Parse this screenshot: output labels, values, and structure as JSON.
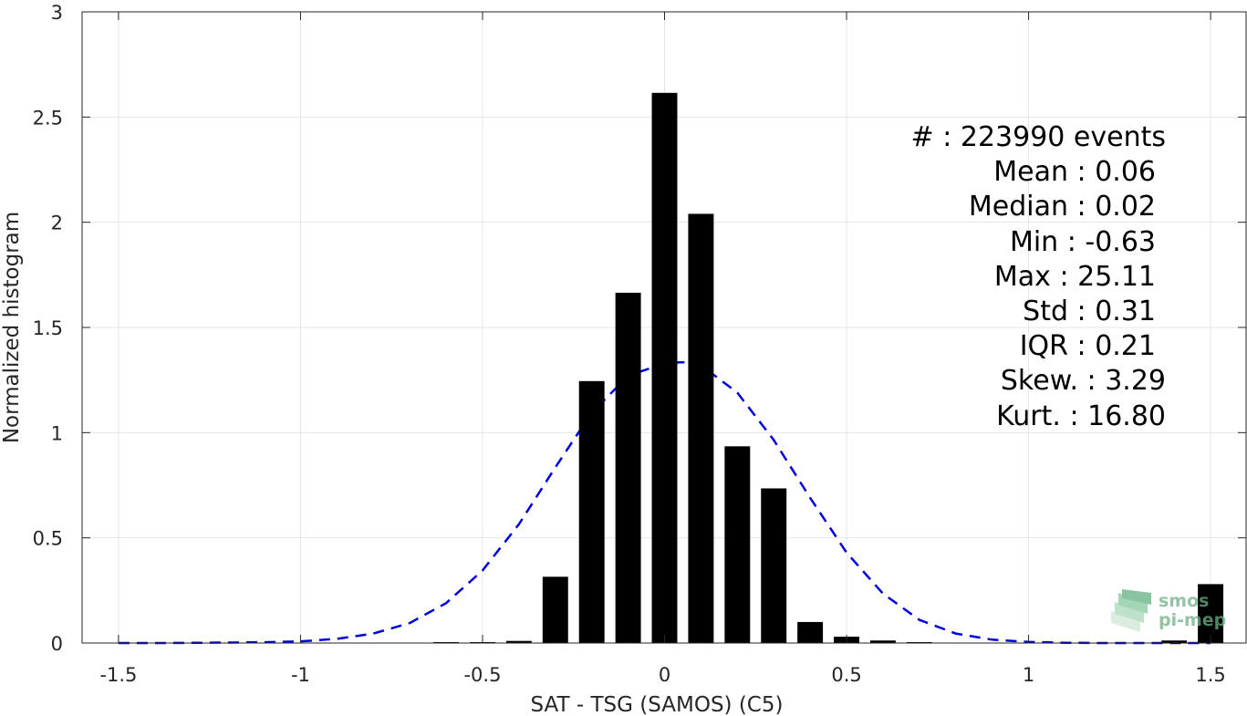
{
  "chart_data": {
    "type": "bar",
    "xlabel": "SAT - TSG (SAMOS) (C5)",
    "ylabel": "Normalized histogram",
    "xlim": [
      -1.6,
      1.6
    ],
    "ylim": [
      0,
      3
    ],
    "xticks": [
      -1.5,
      -1,
      -0.5,
      0,
      0.5,
      1,
      1.5
    ],
    "xtick_labels": [
      "-1.5",
      "-1",
      "-0.5",
      "0",
      "0.5",
      "1",
      "1.5"
    ],
    "yticks": [
      0,
      0.5,
      1,
      1.5,
      2,
      2.5,
      3
    ],
    "ytick_labels": [
      "0",
      "0.5",
      "1",
      "1.5",
      "2",
      "2.5",
      "3"
    ],
    "grid": true,
    "bar_color": "#000000",
    "bars": {
      "x": [
        -0.6,
        -0.5,
        -0.4,
        -0.3,
        -0.2,
        -0.1,
        0.0,
        0.1,
        0.2,
        0.3,
        0.4,
        0.5,
        0.6,
        0.7,
        1.4,
        1.5
      ],
      "values": [
        0.003,
        0.004,
        0.01,
        0.315,
        1.245,
        1.665,
        2.615,
        2.04,
        0.935,
        0.735,
        0.1,
        0.03,
        0.012,
        0.004,
        0.012,
        0.28
      ],
      "width": 0.07
    },
    "series": [
      {
        "type": "line",
        "style": "dashed",
        "color": "#0000dd",
        "x": [
          -1.5,
          -1.4,
          -1.3,
          -1.2,
          -1.1,
          -1.0,
          -0.9,
          -0.8,
          -0.7,
          -0.6,
          -0.5,
          -0.4,
          -0.3,
          -0.2,
          -0.1,
          0.0,
          0.05,
          0.1,
          0.2,
          0.3,
          0.4,
          0.5,
          0.6,
          0.7,
          0.8,
          0.9,
          1.0,
          1.1,
          1.2,
          1.3,
          1.4,
          1.5
        ],
        "values": [
          0.0,
          0.0,
          0.001,
          0.002,
          0.004,
          0.008,
          0.02,
          0.045,
          0.095,
          0.19,
          0.345,
          0.565,
          0.835,
          1.095,
          1.27,
          1.33,
          1.335,
          1.32,
          1.19,
          0.965,
          0.69,
          0.43,
          0.235,
          0.11,
          0.045,
          0.016,
          0.005,
          0.0015,
          0.0,
          0.0,
          0.0,
          0.0
        ]
      }
    ],
    "annotations": [
      "#  : 223990 events",
      "Mean : 0.06",
      "Median : 0.02",
      "Min : -0.63",
      "Max : 25.11",
      "Std : 0.31",
      "IQR : 0.21",
      "Skew. : 3.29",
      "Kurt. : 16.80"
    ]
  },
  "logo": {
    "line1": "smos",
    "line2": "pi-mep"
  }
}
